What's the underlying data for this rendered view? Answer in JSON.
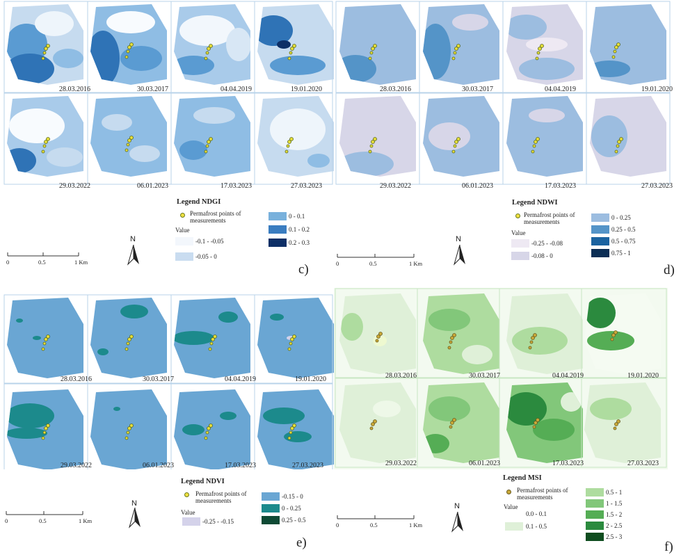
{
  "panels": {
    "c": {
      "letter": "c)",
      "dates_top": [
        "28.03.2016",
        "30.03.2017",
        "04.04.2019",
        "19.01.2020"
      ],
      "dates_bottom": [
        "29.03.2022",
        "06.01.2023",
        "17.03.2023",
        "27.03.2023"
      ],
      "legend_title": "Legend NDGI",
      "points_label": "Permafrost points of measurements",
      "value_label": "Value",
      "classes": [
        {
          "label": "-0.1 - -0.05",
          "color": "#f3f7fc"
        },
        {
          "label": "-0.05 - 0",
          "color": "#c9dcf0"
        },
        {
          "label": "0 - 0.1",
          "color": "#79b1dc"
        },
        {
          "label": "0.1 - 0.2",
          "color": "#3a7dc0"
        },
        {
          "label": "0.2 - 0.3",
          "color": "#0d2f66"
        }
      ],
      "scale_labels": [
        "0",
        "0.5",
        "1 Km"
      ],
      "north": "N"
    },
    "d": {
      "letter": "d)",
      "dates_top": [
        "28.03.2016",
        "30.03.2017",
        "04.04.2019",
        "19.01.2020"
      ],
      "dates_bottom": [
        "29.03.2022",
        "06.01.2023",
        "17.03.2023",
        "27.03.2023"
      ],
      "legend_title": "Legend NDWI",
      "points_label": "Permafrost points of measurements",
      "value_label": "Value",
      "classes": [
        {
          "label": "-0.25 - -0.08",
          "color": "#eee9f3"
        },
        {
          "label": "-0.08 - 0",
          "color": "#d7d6e8"
        },
        {
          "label": "0 - 0.25",
          "color": "#9cbde0"
        },
        {
          "label": "0.25 - 0.5",
          "color": "#5494c8"
        },
        {
          "label": "0.5 - 0.75",
          "color": "#1b63a0"
        },
        {
          "label": "0.75 - 1",
          "color": "#0b2e55"
        }
      ],
      "scale_labels": [
        "0",
        "0.5",
        "1 Km"
      ],
      "north": "N"
    },
    "e": {
      "letter": "e)",
      "dates_top": [
        "28.03.2016",
        "30.03.2017",
        "04.04.2019",
        "19.01.2020"
      ],
      "dates_bottom": [
        "29.03.2022",
        "06.01.2023",
        "17.03.2023",
        "27.03.2023"
      ],
      "legend_title": "Legend NDVI",
      "points_label": "Permafrost points of measurements",
      "value_label": "Value",
      "classes": [
        {
          "label": "-0.25 - -0.15",
          "color": "#d4d2ea"
        },
        {
          "label": "-0.15 - 0",
          "color": "#6aa6d3"
        },
        {
          "label": "0 - 0.25",
          "color": "#1c8a8c"
        },
        {
          "label": "0.25 - 0.5",
          "color": "#0e4a35"
        }
      ],
      "scale_labels": [
        "0",
        "0.5",
        "1 Km"
      ],
      "north": "N"
    },
    "f": {
      "letter": "f)",
      "dates_top": [
        "28.03.2016",
        "30.03.2017",
        "04.04.2019",
        "19.01.2020"
      ],
      "dates_bottom": [
        "29.03.2022",
        "06.01.2023",
        "17.03.2023",
        "27.03.2023"
      ],
      "legend_title": "Legend MSI",
      "points_label": "Permafrost points of measurements",
      "value_label": "Value",
      "classes": [
        {
          "label": "0.0 - 0.1",
          "color": "#f5fbf2"
        },
        {
          "label": "0.1 - 0.5",
          "color": "#dff0d8"
        },
        {
          "label": "0.5 - 1",
          "color": "#aedc9f"
        },
        {
          "label": "1 - 1.5",
          "color": "#82c77a"
        },
        {
          "label": "1.5 - 2",
          "color": "#55ad55"
        },
        {
          "label": "2 - 2.5",
          "color": "#2b8a3e"
        },
        {
          "label": "2.5 - 3",
          "color": "#0f4d1f"
        }
      ],
      "scale_labels": [
        "0",
        "0.5",
        "1 Km"
      ],
      "north": "N"
    }
  }
}
